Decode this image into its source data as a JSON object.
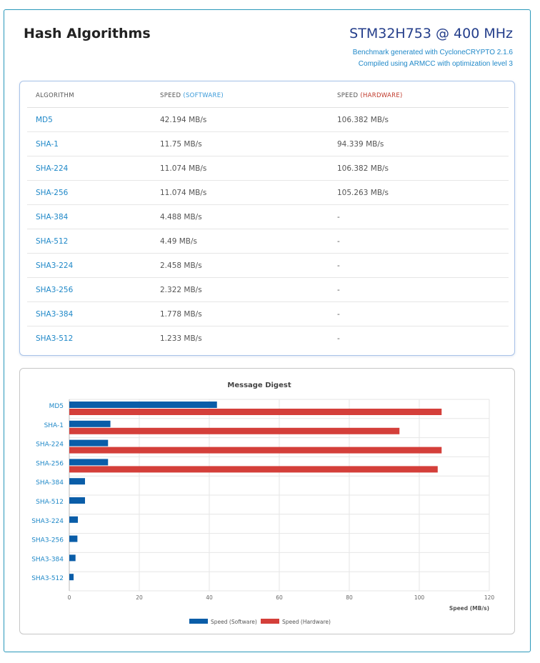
{
  "header": {
    "title": "Hash Algorithms",
    "device": "STM32H753 @ 400 MHz",
    "benchmark_note": "Benchmark generated with CycloneCRYPTO 2.1.6",
    "compiler_note": "Compiled using ARMCC with optimization level 3"
  },
  "table": {
    "col_algorithm": "ALGORITHM",
    "col_speed_prefix": "SPEED",
    "col_software": "(SOFTWARE)",
    "col_hardware": "(HARDWARE)",
    "rows": [
      {
        "algorithm": "MD5",
        "software": "42.194 MB/s",
        "hardware": "106.382 MB/s"
      },
      {
        "algorithm": "SHA-1",
        "software": "11.75 MB/s",
        "hardware": "94.339 MB/s"
      },
      {
        "algorithm": "SHA-224",
        "software": "11.074 MB/s",
        "hardware": "106.382 MB/s"
      },
      {
        "algorithm": "SHA-256",
        "software": "11.074 MB/s",
        "hardware": "105.263 MB/s"
      },
      {
        "algorithm": "SHA-384",
        "software": "4.488 MB/s",
        "hardware": "-"
      },
      {
        "algorithm": "SHA-512",
        "software": "4.49 MB/s",
        "hardware": "-"
      },
      {
        "algorithm": "SHA3-224",
        "software": "2.458 MB/s",
        "hardware": "-"
      },
      {
        "algorithm": "SHA3-256",
        "software": "2.322 MB/s",
        "hardware": "-"
      },
      {
        "algorithm": "SHA3-384",
        "software": "1.778 MB/s",
        "hardware": "-"
      },
      {
        "algorithm": "SHA3-512",
        "software": "1.233 MB/s",
        "hardware": "-"
      }
    ]
  },
  "colors": {
    "software": "#0a5da8",
    "hardware": "#d43f3a",
    "link": "#1f88c8",
    "device_title": "#243e8b"
  },
  "chart_data": {
    "type": "bar",
    "orientation": "horizontal",
    "title": "Message Digest",
    "xlabel": "Speed (MB/s)",
    "ylabel": "",
    "xlim": [
      0,
      120
    ],
    "xticks": [
      0,
      20,
      40,
      60,
      80,
      100,
      120
    ],
    "grid": true,
    "legend_position": "bottom",
    "categories": [
      "MD5",
      "SHA-1",
      "SHA-224",
      "SHA-256",
      "SHA-384",
      "SHA-512",
      "SHA3-224",
      "SHA3-256",
      "SHA3-384",
      "SHA3-512"
    ],
    "series": [
      {
        "name": "Speed (Software)",
        "values": [
          42.194,
          11.75,
          11.074,
          11.074,
          4.488,
          4.49,
          2.458,
          2.322,
          1.778,
          1.233
        ]
      },
      {
        "name": "Speed (Hardware)",
        "values": [
          106.382,
          94.339,
          106.382,
          105.263,
          null,
          null,
          null,
          null,
          null,
          null
        ]
      }
    ]
  }
}
